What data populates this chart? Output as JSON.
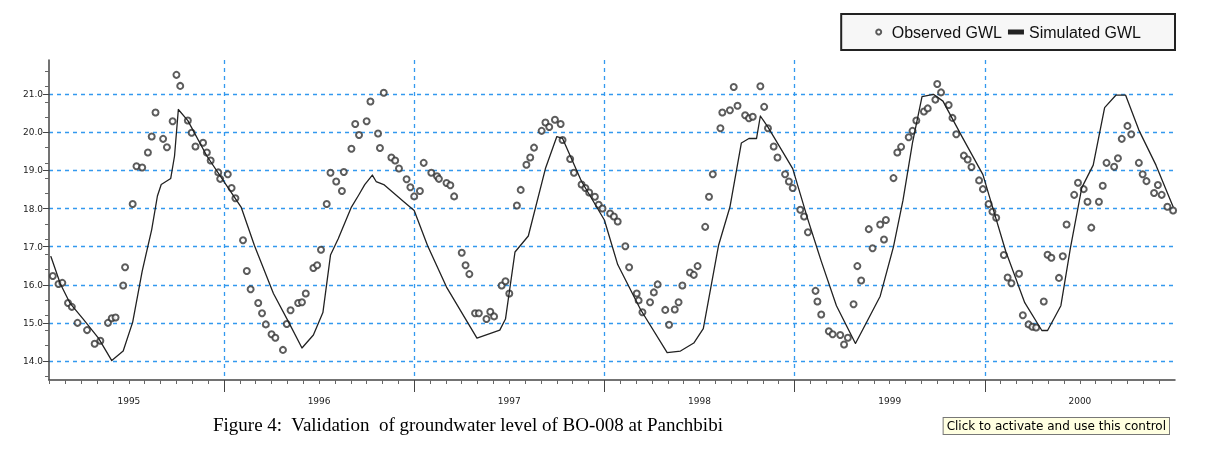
{
  "chart_data": {
    "type": "scatter",
    "title": "Figure 4:  Validation  of groundwater level of BO-008 at Panchbibi",
    "annotations": [
      "Click to activate and use this control"
    ],
    "xlim": [
      1995.08,
      2001.0
    ],
    "xticks": [
      {
        "value": 1995.5,
        "label": "1995"
      },
      {
        "value": 1996.5,
        "label": "1996"
      },
      {
        "value": 1997.5,
        "label": "1997"
      },
      {
        "value": 1998.5,
        "label": "1998"
      },
      {
        "value": 1999.5,
        "label": "1999"
      },
      {
        "value": 2000.5,
        "label": "2000"
      },
      {
        "value": 1996,
        "label": null
      },
      {
        "value": 1997,
        "label": null
      },
      {
        "value": 1998,
        "label": null
      },
      {
        "value": 1999,
        "label": null
      },
      {
        "value": 2000,
        "label": null
      }
    ],
    "ylim": [
      13.5,
      21.9
    ],
    "yticks": [
      {
        "value": 14,
        "label": "14.0"
      },
      {
        "value": 15,
        "label": "15.0"
      },
      {
        "value": 16,
        "label": "16.0"
      },
      {
        "value": 17,
        "label": "17.0"
      },
      {
        "value": 18,
        "label": "18.0"
      },
      {
        "value": 19,
        "label": "19.0"
      },
      {
        "value": 20,
        "label": "20.0"
      },
      {
        "value": 21,
        "label": "21.0"
      }
    ],
    "grid": true,
    "legend": "top right",
    "series": [
      {
        "name": "Observed GWL",
        "color": "#333333",
        "marker": "circle",
        "x": [
          1995.1,
          1995.13,
          1995.15,
          1995.18,
          1995.2,
          1995.23,
          1995.28,
          1995.32,
          1995.35,
          1995.39,
          1995.41,
          1995.43,
          1995.47,
          1995.48,
          1995.52,
          1995.54,
          1995.57,
          1995.6,
          1995.62,
          1995.64,
          1995.68,
          1995.7,
          1995.73,
          1995.75,
          1995.77,
          1995.81,
          1995.83,
          1995.85,
          1995.89,
          1995.91,
          1995.93,
          1995.97,
          1995.98,
          1996.02,
          1996.04,
          1996.06,
          1996.1,
          1996.12,
          1996.14,
          1996.18,
          1996.2,
          1996.22,
          1996.25,
          1996.27,
          1996.31,
          1996.33,
          1996.35,
          1996.39,
          1996.41,
          1996.43,
          1996.47,
          1996.49,
          1996.51,
          1996.54,
          1996.56,
          1996.59,
          1996.62,
          1996.63,
          1996.67,
          1996.69,
          1996.71,
          1996.75,
          1996.77,
          1996.81,
          1996.82,
          1996.84,
          1996.88,
          1996.9,
          1996.92,
          1996.96,
          1996.98,
          1997.0,
          1997.03,
          1997.05,
          1997.09,
          1997.12,
          1997.13,
          1997.17,
          1997.19,
          1997.21,
          1997.25,
          1997.27,
          1997.29,
          1997.32,
          1997.34,
          1997.38,
          1997.4,
          1997.42,
          1997.46,
          1997.48,
          1997.5,
          1997.54,
          1997.56,
          1997.59,
          1997.61,
          1997.63,
          1997.67,
          1997.69,
          1997.71,
          1997.74,
          1997.77,
          1997.78,
          1997.82,
          1997.84,
          1997.88,
          1997.9,
          1997.92,
          1997.95,
          1997.97,
          1997.99,
          1998.03,
          1998.05,
          1998.07,
          1998.11,
          1998.13,
          1998.17,
          1998.18,
          1998.2,
          1998.24,
          1998.26,
          1998.28,
          1998.32,
          1998.34,
          1998.37,
          1998.39,
          1998.41,
          1998.45,
          1998.47,
          1998.49,
          1998.53,
          1998.55,
          1998.57,
          1998.61,
          1998.62,
          1998.66,
          1998.68,
          1998.7,
          1998.74,
          1998.76,
          1998.78,
          1998.82,
          1998.84,
          1998.86,
          1998.89,
          1998.91,
          1998.95,
          1998.97,
          1998.99,
          1999.03,
          1999.05,
          1999.07,
          1999.11,
          1999.12,
          1999.14,
          1999.18,
          1999.2,
          1999.24,
          1999.26,
          1999.28,
          1999.31,
          1999.33,
          1999.35,
          1999.39,
          1999.41,
          1999.45,
          1999.47,
          1999.48,
          1999.52,
          1999.54,
          1999.56,
          1999.6,
          1999.62,
          1999.64,
          1999.68,
          1999.7,
          1999.74,
          1999.75,
          1999.77,
          1999.81,
          1999.83,
          1999.85,
          1999.89,
          1999.91,
          1999.93,
          1999.97,
          1999.99,
          2000.02,
          2000.04,
          2000.06,
          2000.1,
          2000.12,
          2000.14,
          2000.18,
          2000.2,
          2000.23,
          2000.25,
          2000.27,
          2000.31,
          2000.33,
          2000.35,
          2000.39,
          2000.41,
          2000.43,
          2000.47,
          2000.49,
          2000.52,
          2000.54,
          2000.56,
          2000.6,
          2000.62,
          2000.64,
          2000.68,
          2000.7,
          2000.72,
          2000.75,
          2000.77,
          2000.81,
          2000.83,
          2000.85,
          2000.89,
          2000.91,
          2000.93,
          2000.96,
          2000.99
        ],
        "values": [
          16.23,
          16.02,
          16.05,
          15.52,
          15.42,
          15.0,
          14.81,
          14.45,
          14.53,
          15.0,
          15.12,
          15.14,
          15.98,
          16.46,
          18.12,
          19.11,
          19.08,
          19.47,
          19.89,
          20.52,
          19.83,
          19.61,
          20.29,
          21.51,
          21.22,
          20.31,
          19.99,
          19.63,
          19.73,
          19.47,
          19.26,
          18.95,
          18.78,
          18.9,
          18.54,
          18.27,
          17.17,
          16.36,
          15.88,
          15.52,
          15.25,
          14.96,
          14.7,
          14.61,
          14.29,
          14.97,
          15.33,
          15.52,
          15.54,
          15.77,
          16.44,
          16.51,
          16.92,
          18.12,
          18.94,
          18.71,
          18.46,
          18.96,
          19.57,
          20.22,
          19.93,
          20.29,
          20.81,
          19.97,
          19.59,
          21.04,
          19.34,
          19.26,
          19.05,
          18.77,
          18.56,
          18.32,
          18.46,
          19.2,
          18.94,
          18.85,
          18.78,
          18.67,
          18.61,
          18.32,
          16.84,
          16.51,
          16.28,
          15.25,
          15.25,
          15.1,
          15.29,
          15.17,
          15.98,
          16.09,
          15.77,
          18.08,
          18.49,
          19.15,
          19.34,
          19.6,
          20.04,
          20.26,
          20.14,
          20.33,
          20.22,
          19.8,
          19.3,
          18.94,
          18.63,
          18.54,
          18.42,
          18.31,
          18.1,
          18.0,
          17.87,
          17.79,
          17.66,
          17.01,
          16.46,
          15.77,
          15.59,
          15.28,
          15.54,
          15.8,
          16.01,
          15.34,
          14.95,
          15.35,
          15.54,
          15.98,
          16.32,
          16.26,
          16.49,
          17.52,
          18.31,
          18.9,
          20.11,
          20.52,
          20.58,
          21.19,
          20.7,
          20.45,
          20.37,
          20.41,
          21.21,
          20.67,
          20.11,
          19.63,
          19.34,
          18.9,
          18.71,
          18.54,
          17.97,
          17.79,
          17.38,
          15.84,
          15.56,
          15.22,
          14.78,
          14.7,
          14.68,
          14.43,
          14.61,
          15.49,
          16.49,
          16.11,
          17.46,
          16.96,
          17.58,
          17.19,
          17.7,
          18.8,
          19.47,
          19.62,
          19.87,
          20.04,
          20.31,
          20.55,
          20.63,
          20.86,
          21.27,
          21.05,
          20.72,
          20.38,
          19.95,
          19.39,
          19.29,
          19.09,
          18.74,
          18.51,
          18.12,
          17.92,
          17.76,
          16.78,
          16.19,
          16.04,
          16.29,
          15.2,
          14.96,
          14.9,
          14.88,
          15.56,
          16.79,
          16.71,
          16.18,
          16.75,
          17.58,
          18.36,
          18.68,
          18.51,
          18.18,
          17.5,
          18.18,
          18.6,
          19.2,
          19.1,
          19.32,
          19.83,
          20.17,
          19.95,
          19.2,
          18.9,
          18.72,
          18.41,
          18.62,
          18.36,
          18.05,
          17.95
        ]
      },
      {
        "name": "Simulated GWL",
        "type": "line",
        "color": "#222222",
        "line_style": "solid",
        "x": [
          1995.09,
          1995.14,
          1995.19,
          1995.26,
          1995.34,
          1995.41,
          1995.47,
          1995.52,
          1995.57,
          1995.62,
          1995.65,
          1995.67,
          1995.72,
          1995.74,
          1995.76,
          1995.81,
          1995.91,
          1996.0,
          1996.09,
          1996.16,
          1996.26,
          1996.34,
          1996.41,
          1996.47,
          1996.52,
          1996.56,
          1996.6,
          1996.67,
          1996.71,
          1996.74,
          1996.78,
          1996.8,
          1996.84,
          1996.95,
          1997.0,
          1997.07,
          1997.17,
          1997.33,
          1997.45,
          1997.48,
          1997.53,
          1997.6,
          1997.69,
          1997.75,
          1997.78,
          1997.88,
          1998.0,
          1998.07,
          1998.19,
          1998.33,
          1998.4,
          1998.47,
          1998.52,
          1998.6,
          1998.66,
          1998.72,
          1998.76,
          1998.8,
          1998.82,
          1998.86,
          1998.99,
          1999.07,
          1999.14,
          1999.22,
          1999.32,
          1999.38,
          1999.45,
          1999.52,
          1999.57,
          1999.62,
          1999.67,
          1999.73,
          1999.78,
          1999.88,
          1999.99,
          2000.04,
          2000.11,
          2000.21,
          2000.3,
          2000.33,
          2000.4,
          2000.45,
          2000.51,
          2000.57,
          2000.63,
          2000.69,
          2000.74,
          2000.81,
          2000.9,
          2000.99
        ],
        "values": [
          16.74,
          16.02,
          15.52,
          15.1,
          14.6,
          14.01,
          14.26,
          15.02,
          16.36,
          17.45,
          18.33,
          18.63,
          18.79,
          19.38,
          20.6,
          20.31,
          19.38,
          18.71,
          18.04,
          17.03,
          15.77,
          15.02,
          14.34,
          14.68,
          15.27,
          16.78,
          17.2,
          18.04,
          18.37,
          18.63,
          18.88,
          18.71,
          18.63,
          18.16,
          17.95,
          17.03,
          15.94,
          14.6,
          14.81,
          15.1,
          16.86,
          17.28,
          19.05,
          19.89,
          19.84,
          18.71,
          17.7,
          16.53,
          15.35,
          14.22,
          14.26,
          14.47,
          14.85,
          17.03,
          18.04,
          19.72,
          19.84,
          19.84,
          20.43,
          20.14,
          19.05,
          17.71,
          16.62,
          15.45,
          14.46,
          15.03,
          15.7,
          17.0,
          18.22,
          19.73,
          20.94,
          21.0,
          20.82,
          19.89,
          18.89,
          18.05,
          16.88,
          15.53,
          14.8,
          14.8,
          15.45,
          16.96,
          18.55,
          19.14,
          20.65,
          20.98,
          20.98,
          20.06,
          19.14,
          18.05
        ]
      }
    ]
  }
}
